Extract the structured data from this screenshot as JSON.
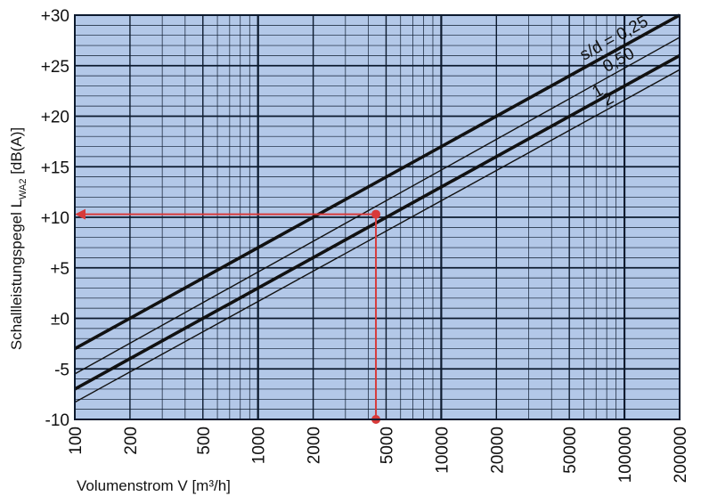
{
  "chart_data": {
    "type": "line",
    "x_scale": "log",
    "xlim": [
      100,
      200000
    ],
    "ylim": [
      -10,
      30
    ],
    "grid": true,
    "plot_background": "#b3c8e8",
    "xlabel": "Volumenstrom V [m³/h]",
    "ylabel": "Schallleistungspegel L_WA2 [dB(A)]",
    "ylabel_main": "Schallleistungspegel L",
    "ylabel_sub": "WA2",
    "ylabel_unit": " [dB(A)]",
    "x_ticks": [
      {
        "value": 100,
        "label": "100"
      },
      {
        "value": 200,
        "label": "200"
      },
      {
        "value": 500,
        "label": "500"
      },
      {
        "value": 1000,
        "label": "1000"
      },
      {
        "value": 2000,
        "label": "2000"
      },
      {
        "value": 5000,
        "label": "5000"
      },
      {
        "value": 10000,
        "label": "10000"
      },
      {
        "value": 20000,
        "label": "20000"
      },
      {
        "value": 50000,
        "label": "50000"
      },
      {
        "value": 100000,
        "label": "100000"
      },
      {
        "value": 200000,
        "label": "200000"
      }
    ],
    "y_ticks": [
      {
        "value": 30,
        "label": "+30"
      },
      {
        "value": 25,
        "label": "+25"
      },
      {
        "value": 20,
        "label": "+20"
      },
      {
        "value": 15,
        "label": "+15"
      },
      {
        "value": 10,
        "label": "+10"
      },
      {
        "value": 5,
        "label": "+5"
      },
      {
        "value": 0,
        "label": "±0"
      },
      {
        "value": -5,
        "label": "-5"
      },
      {
        "value": -10,
        "label": "-10"
      }
    ],
    "curve_label_prefix": "s/d = ",
    "series": [
      {
        "name": "0,25",
        "x": [
          100,
          200000
        ],
        "y": [
          -3,
          30
        ],
        "line_weight": "bold"
      },
      {
        "name": "0,50",
        "x": [
          100,
          200000
        ],
        "y": [
          -5.5,
          27.8
        ],
        "line_weight": "thin"
      },
      {
        "name": "1",
        "x": [
          100,
          200000
        ],
        "y": [
          -7,
          26
        ],
        "line_weight": "bold"
      },
      {
        "name": "2",
        "x": [
          100,
          200000
        ],
        "y": [
          -8.3,
          24.6
        ],
        "line_weight": "thin"
      }
    ],
    "example": {
      "x": 4400,
      "y": 10.3,
      "color": "#d83a3a"
    }
  }
}
